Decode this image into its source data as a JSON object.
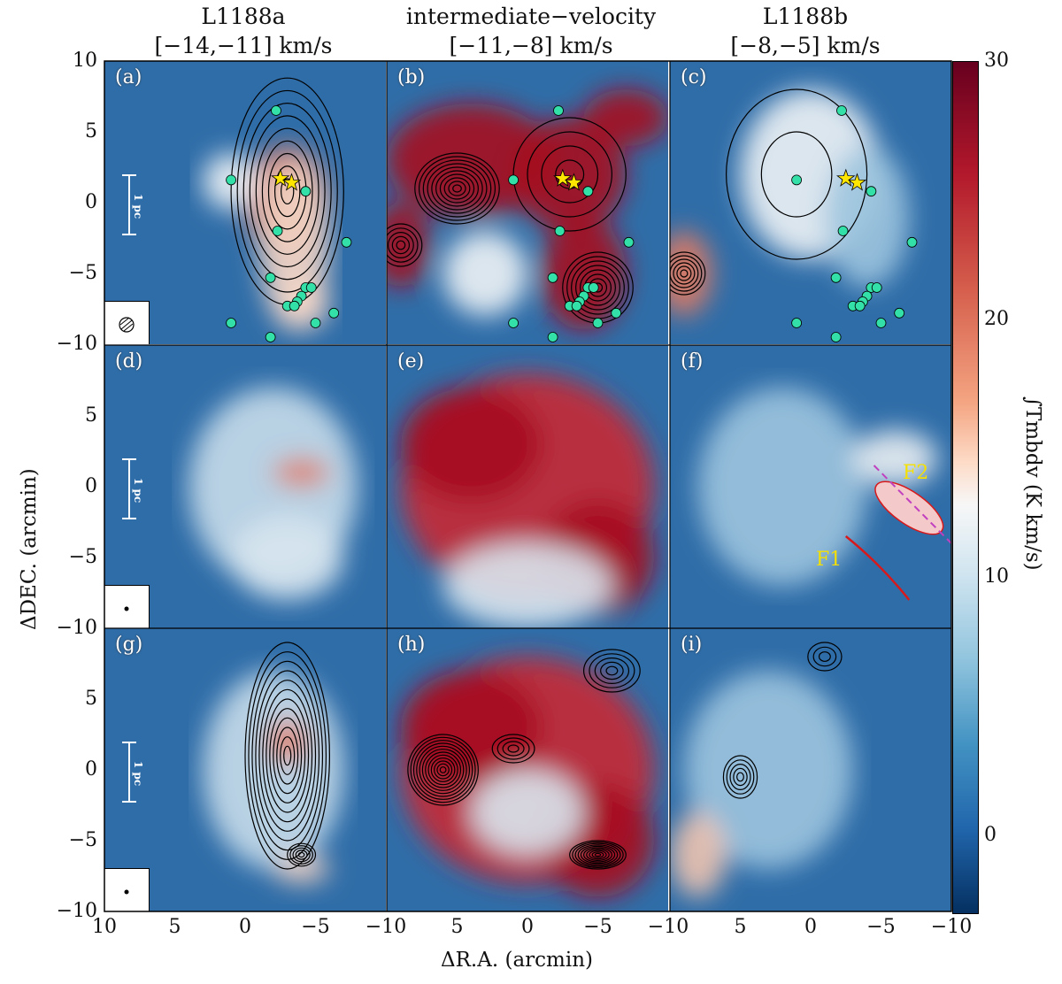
{
  "figure": {
    "columns": [
      {
        "name": "L1188a",
        "range": "[−14,−11] km/s"
      },
      {
        "name": "intermediate−velocity",
        "range": "[−11,−8] km/s"
      },
      {
        "name": "L1188b",
        "range": "[−8,−5] km/s"
      }
    ],
    "panels": [
      "(a)",
      "(b)",
      "(c)",
      "(d)",
      "(e)",
      "(f)",
      "(g)",
      "(h)",
      "(i)"
    ],
    "scale_bar_label": "1 pc",
    "filament_labels": [
      "F1",
      "F2"
    ],
    "colors": {
      "star": "#ffe600",
      "yso": "#33e0a8",
      "filament_f1": "#d7191c",
      "dashed_line": "#c040c0"
    }
  },
  "chart_data": {
    "type": "heatmap",
    "xlabel": "ΔR.A. (arcmin)",
    "ylabel": "ΔDEC. (arcmin)",
    "xlim": [
      10,
      -10
    ],
    "ylim": [
      -10,
      10
    ],
    "x_ticks": [
      "10",
      "5",
      "0",
      "−5",
      "−10"
    ],
    "y_ticks": [
      "10",
      "5",
      "0",
      "−5",
      "−10"
    ],
    "colorbar": {
      "label": "∫T_mb dv (K km/s)",
      "label_text": "∫Tmbdv (K km/s)",
      "range": [
        -3,
        30
      ],
      "ticks": [
        "30",
        "20",
        "10",
        "0"
      ]
    },
    "stars": [
      {
        "x": -2.5,
        "y": 1.7
      },
      {
        "x": -3.3,
        "y": 1.4
      }
    ],
    "ysos": [
      {
        "x": -2.2,
        "y": 6.5
      },
      {
        "x": 1.0,
        "y": 1.6
      },
      {
        "x": -4.3,
        "y": 0.8
      },
      {
        "x": -2.3,
        "y": -2.0
      },
      {
        "x": -7.2,
        "y": -2.8
      },
      {
        "x": -1.8,
        "y": -5.3
      },
      {
        "x": -4.3,
        "y": -6.0
      },
      {
        "x": -4.7,
        "y": -6.0
      },
      {
        "x": -4.0,
        "y": -6.6
      },
      {
        "x": -3.7,
        "y": -7.0
      },
      {
        "x": -3.0,
        "y": -7.3
      },
      {
        "x": -3.5,
        "y": -7.3
      },
      {
        "x": -6.3,
        "y": -7.8
      },
      {
        "x": 1.0,
        "y": -8.5
      },
      {
        "x": -1.8,
        "y": -9.5
      },
      {
        "x": -5.0,
        "y": -8.5
      }
    ]
  }
}
